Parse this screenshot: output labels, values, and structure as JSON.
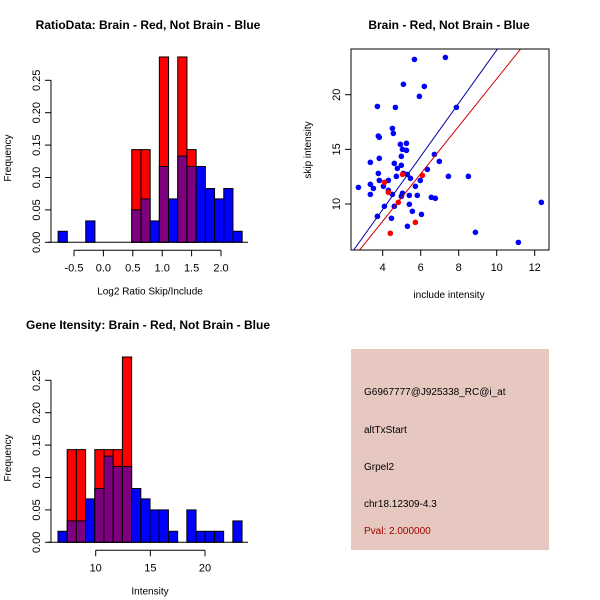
{
  "colors": {
    "brain": "#ff0000",
    "not_brain": "#0000ff",
    "overlap": "#7f007f",
    "brain_line": "#cc0000",
    "not_brain_line": "#0000aa",
    "info_bg": "#e6c8c0",
    "pval": "#a00000"
  },
  "chart_data": [
    {
      "type": "bar",
      "title": "RatioData: Brain - Red, Not Brain - Blue",
      "xlabel": "Log2 Ratio Skip/Include",
      "ylabel": "Frequency",
      "xlim": [
        -0.85,
        2.45
      ],
      "ylim": [
        0,
        0.286
      ],
      "xticks": [
        -0.5,
        0.0,
        0.5,
        1.0,
        1.5,
        2.0
      ],
      "xtick_labels": [
        "-0.5",
        "0.0",
        "0.5",
        "1.0",
        "1.5",
        "2.0"
      ],
      "yticks": [
        0,
        0.05,
        0.1,
        0.15,
        0.2,
        0.25
      ],
      "ytick_labels": [
        "0.00",
        "0.05",
        "0.10",
        "0.15",
        "0.20",
        "0.25"
      ],
      "bin_start": -0.77,
      "bin_width": 0.1565,
      "series": [
        {
          "name": "Brain",
          "values": [
            0,
            0,
            0,
            0,
            0,
            0,
            0,
            0,
            0.143,
            0.143,
            0,
            0.286,
            0,
            0.286,
            0.143,
            0,
            0,
            0,
            0,
            0
          ]
        },
        {
          "name": "Not Brain",
          "values": [
            0.017,
            0,
            0,
            0.033,
            0,
            0,
            0,
            0,
            0.05,
            0.067,
            0.033,
            0.117,
            0.067,
            0.133,
            0.117,
            0.117,
            0.083,
            0.067,
            0.083,
            0.017
          ]
        }
      ]
    },
    {
      "type": "scatter",
      "title": "Brain - Red, Not Brain - Blue",
      "xlabel": "include intensity",
      "ylabel": "skip intensity",
      "xlim": [
        2.4,
        12.8
      ],
      "ylim": [
        5.8,
        24.2
      ],
      "xticks": [
        4,
        6,
        8,
        10,
        12
      ],
      "xtick_labels": [
        "4",
        "6",
        "8",
        "10",
        "12"
      ],
      "yticks": [
        10,
        15,
        20
      ],
      "ytick_labels": [
        "10",
        "15",
        "20"
      ],
      "series": [
        {
          "name": "Not Brain",
          "points": [
            [
              2.72,
              11.52
            ],
            [
              5.67,
              23.23
            ],
            [
              7.3,
              23.41
            ],
            [
              5.09,
              20.95
            ],
            [
              6.19,
              20.76
            ],
            [
              5.93,
              19.85
            ],
            [
              3.72,
              18.93
            ],
            [
              4.67,
              18.84
            ],
            [
              7.88,
              18.84
            ],
            [
              4.51,
              16.92
            ],
            [
              4.56,
              16.46
            ],
            [
              3.77,
              16.22
            ],
            [
              3.82,
              16.1
            ],
            [
              4.93,
              15.46
            ],
            [
              5.25,
              15.55
            ],
            [
              5.04,
              15.0
            ],
            [
              5.25,
              14.91
            ],
            [
              4.98,
              14.36
            ],
            [
              3.82,
              14.18
            ],
            [
              6.72,
              14.54
            ],
            [
              6.98,
              13.9
            ],
            [
              3.35,
              13.81
            ],
            [
              4.61,
              13.72
            ],
            [
              4.98,
              13.54
            ],
            [
              4.77,
              13.26
            ],
            [
              3.77,
              12.8
            ],
            [
              5.09,
              12.8
            ],
            [
              5.3,
              12.71
            ],
            [
              6.35,
              13.17
            ],
            [
              4.72,
              12.53
            ],
            [
              5.46,
              12.35
            ],
            [
              7.46,
              12.53
            ],
            [
              8.51,
              12.53
            ],
            [
              3.82,
              12.16
            ],
            [
              4.3,
              12.16
            ],
            [
              5.98,
              12.16
            ],
            [
              3.35,
              11.8
            ],
            [
              3.51,
              11.43
            ],
            [
              4.04,
              11.62
            ],
            [
              5.72,
              11.62
            ],
            [
              4.3,
              11.25
            ],
            [
              4.51,
              10.88
            ],
            [
              5.04,
              10.98
            ],
            [
              3.35,
              10.88
            ],
            [
              4.98,
              10.7
            ],
            [
              5.4,
              10.79
            ],
            [
              5.82,
              10.79
            ],
            [
              6.56,
              10.61
            ],
            [
              6.77,
              10.52
            ],
            [
              5.4,
              9.97
            ],
            [
              4.09,
              9.79
            ],
            [
              4.61,
              9.79
            ],
            [
              5.56,
              9.33
            ],
            [
              3.72,
              8.87
            ],
            [
              6.04,
              9.05
            ],
            [
              4.46,
              8.69
            ],
            [
              5.3,
              7.96
            ],
            [
              8.88,
              7.41
            ],
            [
              11.14,
              6.49
            ],
            [
              12.35,
              10.15
            ]
          ],
          "line": {
            "slope": 2.43,
            "intercept": -0.22
          }
        },
        {
          "name": "Brain",
          "points": [
            [
              4.09,
              11.98
            ],
            [
              4.3,
              11.07
            ],
            [
              5.04,
              12.71
            ],
            [
              6.09,
              12.62
            ],
            [
              4.82,
              10.15
            ],
            [
              5.72,
              8.32
            ],
            [
              4.4,
              7.32
            ]
          ],
          "line": {
            "slope": 2.17,
            "intercept": -0.25
          }
        }
      ]
    },
    {
      "type": "bar",
      "title": "Gene Itensity: Brain - Red, Not Brain - Blue",
      "xlabel": "Intensity",
      "ylabel": "Frequency",
      "xlim": [
        6,
        24
      ],
      "ylim": [
        0,
        0.286
      ],
      "xticks": [
        10,
        15,
        20
      ],
      "xtick_labels": [
        "10",
        "15",
        "20"
      ],
      "yticks": [
        0,
        0.05,
        0.1,
        0.15,
        0.2,
        0.25
      ],
      "ytick_labels": [
        "0.00",
        "0.05",
        "0.10",
        "0.15",
        "0.20",
        "0.25"
      ],
      "bin_start": 6.55,
      "bin_width": 0.842,
      "series": [
        {
          "name": "Brain",
          "values": [
            0,
            0.143,
            0.143,
            0,
            0.143,
            0.143,
            0.143,
            0.286,
            0,
            0,
            0,
            0,
            0,
            0,
            0,
            0,
            0,
            0,
            0,
            0
          ]
        },
        {
          "name": "Not Brain",
          "values": [
            0.017,
            0.033,
            0.033,
            0.067,
            0.083,
            0.133,
            0.117,
            0.117,
            0.083,
            0.067,
            0.05,
            0.05,
            0.017,
            0,
            0.05,
            0.017,
            0.017,
            0.017,
            0,
            0.033
          ]
        }
      ]
    }
  ],
  "info": {
    "probe": "G6967777@J925338_RC@i_at",
    "event": "altTxStart",
    "gene": "Grpel2",
    "location": "chr18.12309-4.3",
    "pval": "Pval: 2.000000"
  }
}
